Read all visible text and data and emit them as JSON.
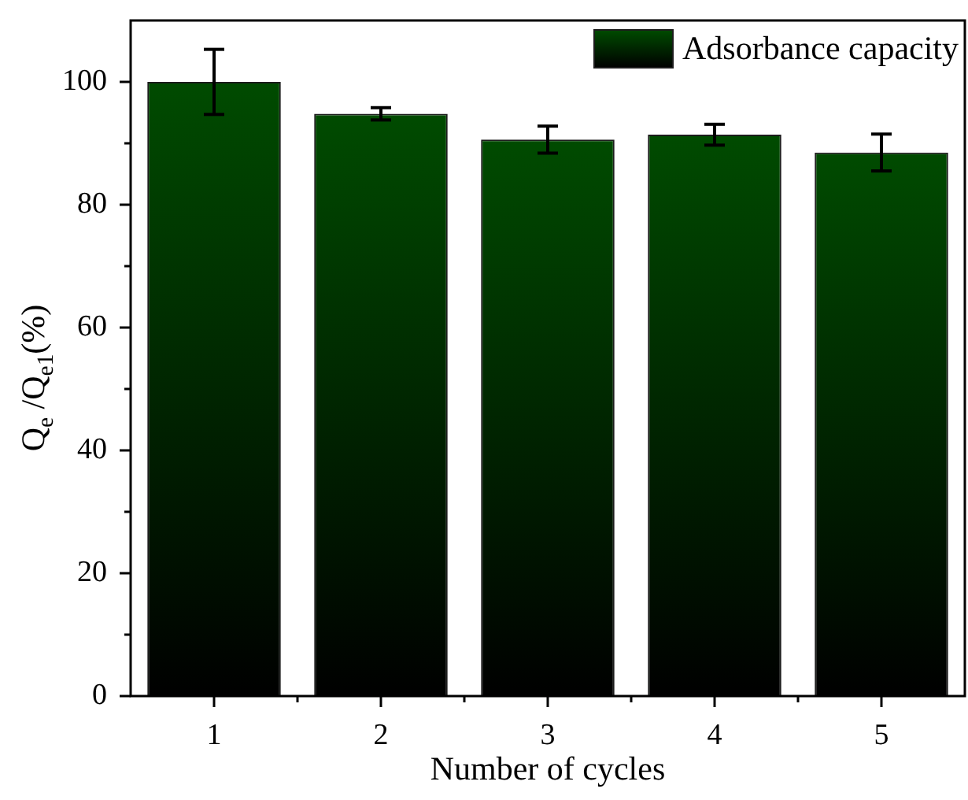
{
  "chart_data": {
    "type": "bar",
    "xlabel": "Number of cycles",
    "ylabel": "Q$_{e}$ /Q$_{e1}$(%)",
    "categories": [
      "1",
      "2",
      "3",
      "4",
      "5"
    ],
    "series": [
      {
        "name": "Adsorbance capacity",
        "color": "#004b00",
        "values": [
          100,
          94.8,
          90.6,
          91.4,
          88.5
        ],
        "errors": [
          5.3,
          1.0,
          2.2,
          1.7,
          3.0
        ]
      }
    ],
    "ylim": [
      0,
      110
    ],
    "yticks": [
      0,
      {
        "value": 10,
        "label": null
      },
      20,
      {
        "value": 30,
        "label": null
      },
      40,
      {
        "value": 50,
        "label": null
      },
      60,
      {
        "value": 70,
        "label": null
      },
      80,
      {
        "value": 90,
        "label": null
      },
      100
    ],
    "legend": "top right"
  }
}
